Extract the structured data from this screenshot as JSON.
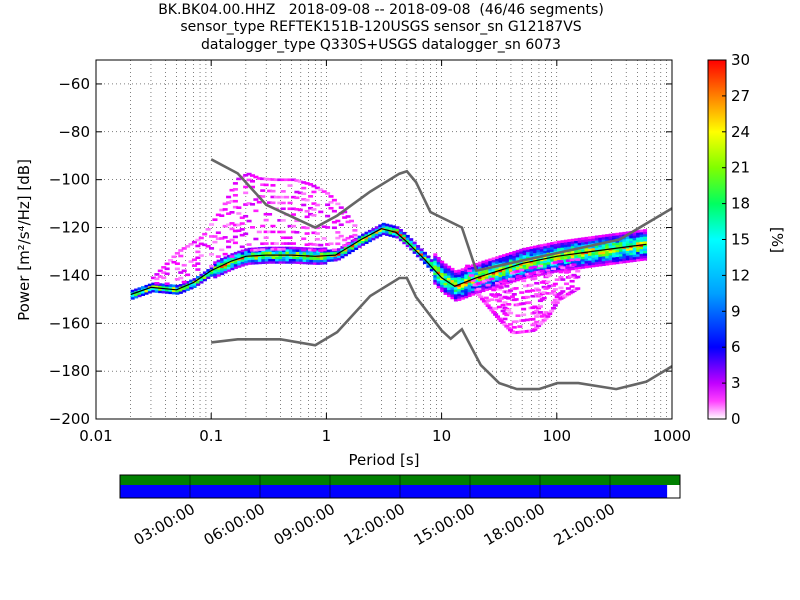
{
  "title_lines": [
    "BK.BK04.00.HHZ   2018-09-08 -- 2018-09-08  (46/46 segments)",
    "sensor_type REFTEK151B-120USGS sensor_sn G12187VS",
    "datalogger_type Q330S+USGS datalogger_sn 6073"
  ],
  "chart_data": {
    "type": "heatmap",
    "xlabel": "Period [s]",
    "ylabel": "Power [m²/s⁴/Hz] [dB]",
    "xscale": "log",
    "xlim": [
      0.01,
      1000
    ],
    "ylim": [
      -200,
      -50
    ],
    "x_ticks": [
      0.01,
      0.1,
      1,
      10,
      100,
      1000
    ],
    "x_tick_labels": [
      "0.01",
      "0.1",
      "1",
      "10",
      "100",
      "1000"
    ],
    "y_ticks": [
      -200,
      -180,
      -160,
      -140,
      -120,
      -100,
      -80,
      -60
    ],
    "y_tick_labels": [
      "−200",
      "−180",
      "−160",
      "−140",
      "−120",
      "−100",
      "−80",
      "−60"
    ],
    "grid": "dotted",
    "colorbar": {
      "label": "[%]",
      "range": [
        0,
        30
      ],
      "ticks": [
        0,
        3,
        6,
        9,
        12,
        15,
        18,
        21,
        24,
        27,
        30
      ],
      "colormap": [
        "#ffffff",
        "#ff00ff",
        "#8000ff",
        "#0000ff",
        "#00a0ff",
        "#00ffff",
        "#00ff60",
        "#80ff00",
        "#ffff00",
        "#ff8000",
        "#ff0000"
      ]
    },
    "noise_models": [
      {
        "name": "NHNM",
        "color": "#666666",
        "points": [
          [
            0.1,
            -91.5
          ],
          [
            0.17,
            -97.4
          ],
          [
            0.3,
            -110.5
          ],
          [
            0.8,
            -120
          ],
          [
            1.24,
            -115
          ],
          [
            2.4,
            -105
          ],
          [
            4.3,
            -97.5
          ],
          [
            5,
            -96.5
          ],
          [
            6,
            -101
          ],
          [
            8,
            -113.5
          ],
          [
            15,
            -120
          ],
          [
            20,
            -138
          ],
          [
            350,
            -125
          ],
          [
            1000,
            -112
          ]
        ]
      },
      {
        "name": "NLNM",
        "color": "#666666",
        "points": [
          [
            0.1,
            -168
          ],
          [
            0.17,
            -166.7
          ],
          [
            0.4,
            -166.7
          ],
          [
            0.8,
            -169.2
          ],
          [
            1.24,
            -163.7
          ],
          [
            2.4,
            -148.6
          ],
          [
            4.3,
            -141.1
          ],
          [
            5,
            -141.1
          ],
          [
            6,
            -149
          ],
          [
            10,
            -163
          ],
          [
            12,
            -166.5
          ],
          [
            15,
            -162.5
          ],
          [
            21.9,
            -177.5
          ],
          [
            31.6,
            -185
          ],
          [
            45,
            -187.5
          ],
          [
            70,
            -187.5
          ],
          [
            101,
            -185
          ],
          [
            154,
            -185
          ],
          [
            328,
            -187.5
          ],
          [
            600,
            -184.4
          ],
          [
            1000,
            -178
          ]
        ]
      }
    ],
    "ppsd_mode_curve": {
      "color": "#000000",
      "points": [
        [
          0.02,
          -148
        ],
        [
          0.03,
          -145
        ],
        [
          0.05,
          -146
        ],
        [
          0.07,
          -143
        ],
        [
          0.1,
          -138
        ],
        [
          0.15,
          -134
        ],
        [
          0.2,
          -132
        ],
        [
          0.3,
          -131.5
        ],
        [
          0.5,
          -131.5
        ],
        [
          0.8,
          -132
        ],
        [
          1.2,
          -131.5
        ],
        [
          2,
          -125
        ],
        [
          3,
          -120.5
        ],
        [
          4,
          -122
        ],
        [
          5,
          -126
        ],
        [
          7,
          -133
        ],
        [
          10,
          -141
        ],
        [
          13,
          -144.5
        ],
        [
          20,
          -141
        ],
        [
          50,
          -135
        ],
        [
          100,
          -132
        ],
        [
          200,
          -130
        ],
        [
          600,
          -127
        ]
      ]
    },
    "scatter_regions": [
      {
        "name": "upper-lobe",
        "points": [
          [
            0.03,
            -141
          ],
          [
            0.05,
            -130
          ],
          [
            0.08,
            -124
          ],
          [
            0.12,
            -112
          ],
          [
            0.16,
            -100
          ],
          [
            0.2,
            -97.5
          ],
          [
            0.25,
            -99.5
          ],
          [
            0.35,
            -100
          ],
          [
            0.5,
            -100
          ],
          [
            0.7,
            -102
          ],
          [
            1,
            -106
          ],
          [
            1.3,
            -112
          ],
          [
            1.8,
            -121
          ]
        ]
      },
      {
        "name": "lower-lobe",
        "points": [
          [
            16,
            -136
          ],
          [
            20,
            -148
          ],
          [
            30,
            -158
          ],
          [
            40,
            -164
          ],
          [
            60,
            -163
          ],
          [
            80,
            -157
          ],
          [
            100,
            -150
          ],
          [
            150,
            -145
          ]
        ]
      }
    ],
    "time_coverage": {
      "tick_labels": [
        "03:00:00",
        "06:00:00",
        "09:00:00",
        "12:00:00",
        "15:00:00",
        "18:00:00",
        "21:00:00"
      ],
      "bars": [
        {
          "name": "data-availability",
          "color": "#008000",
          "from": 0.0,
          "to": 1.0
        },
        {
          "name": "ppsd-coverage",
          "color": "#0000ff",
          "from": 0.0,
          "to": 0.977
        }
      ]
    }
  }
}
